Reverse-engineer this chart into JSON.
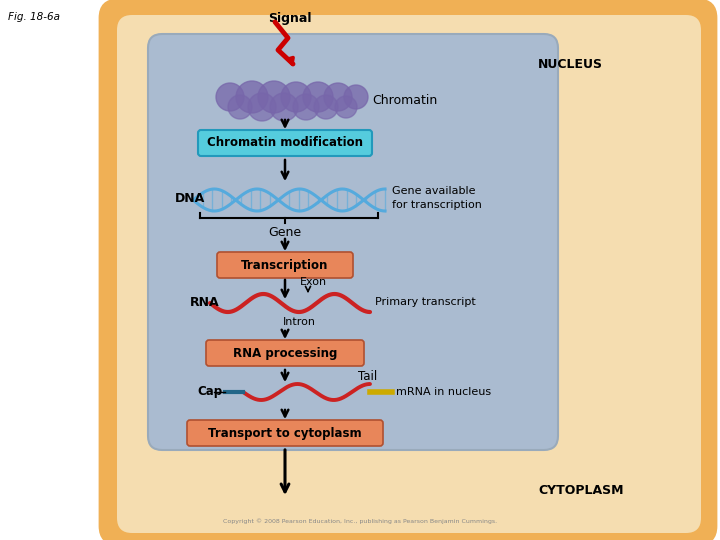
{
  "fig_label": "Fig. 18-6a",
  "signal_label": "Signal",
  "nucleus_label": "NUCLEUS",
  "cytoplasm_label": "CYTOPLASM",
  "chromatin_label": "Chromatin",
  "dna_label": "DNA",
  "gene_label": "Gene",
  "rna_label": "RNA",
  "cap_label": "Cap",
  "exon_label": "Exon",
  "intron_label": "Intron",
  "primary_transcript_label": "Primary transcript",
  "mrna_label": "mRNA in nucleus",
  "tail_label": "Tail",
  "gene_available_label": "Gene available\nfor transcription",
  "box1_text": "Chromatin modification",
  "box2_text": "Transcription",
  "box3_text": "RNA processing",
  "box4_text": "Transport to cytoplasm",
  "box1_color": "#55CCDD",
  "box2_color": "#E8865A",
  "box3_color": "#E8865A",
  "box4_color": "#E8865A",
  "cell_outer_color": "#F0B055",
  "nucleus_color": "#AABBD0",
  "cell_bg_color": "#F5DDB0",
  "signal_color": "#CC0000",
  "dna_color": "#55AADD",
  "rna_color": "#CC2222",
  "cap_color": "#226688",
  "tail_color": "#CCAA00",
  "chromatin_color": "#7766AA",
  "copyright_text": "Copyright © 2008 Pearson Education, Inc., publishing as Pearson Benjamin Cummings."
}
